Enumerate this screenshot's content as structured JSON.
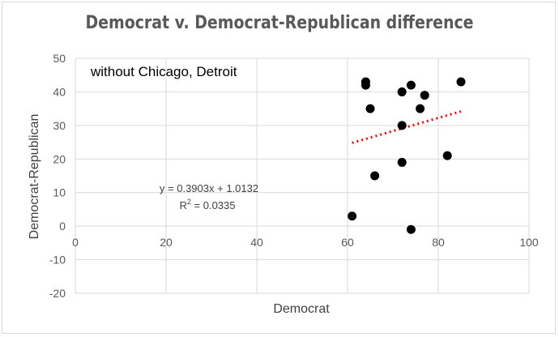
{
  "chart_data": {
    "type": "scatter",
    "title": "Democrat v. Democrat-Republican difference",
    "xlabel": "Democrat",
    "ylabel": "Democrat-Republican",
    "xlim": [
      0,
      100
    ],
    "ylim": [
      -20,
      50
    ],
    "x_ticks": [
      "0",
      "20",
      "40",
      "60",
      "80",
      "100"
    ],
    "y_ticks": [
      "-20",
      "-10",
      "0",
      "10",
      "20",
      "30",
      "40",
      "50"
    ],
    "grid": true,
    "annotation": "without Chicago, Detroit",
    "trendline": {
      "slope": 0.3903,
      "intercept": 1.0132,
      "x_range": [
        61,
        85
      ],
      "equation": "y = 0.3903x + 1.0132",
      "r2_prefix": "R",
      "r2_suffix": " = 0.0335",
      "color": "#ff0000"
    },
    "series": [
      {
        "marker_color": "#000000",
        "points": [
          {
            "x": 61,
            "y": 3
          },
          {
            "x": 64,
            "y": 43
          },
          {
            "x": 64,
            "y": 42
          },
          {
            "x": 65,
            "y": 35
          },
          {
            "x": 66,
            "y": 15
          },
          {
            "x": 72,
            "y": 40
          },
          {
            "x": 72,
            "y": 30
          },
          {
            "x": 72,
            "y": 19
          },
          {
            "x": 74,
            "y": 42
          },
          {
            "x": 74,
            "y": -1
          },
          {
            "x": 76,
            "y": 35
          },
          {
            "x": 77,
            "y": 39
          },
          {
            "x": 82,
            "y": 21
          },
          {
            "x": 85,
            "y": 43
          }
        ]
      }
    ]
  }
}
